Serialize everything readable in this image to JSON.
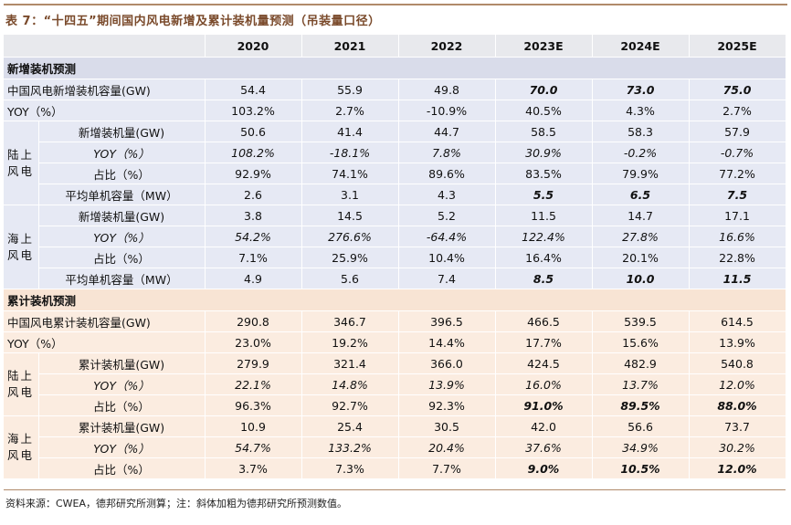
{
  "title": "表 7：“十四五”期间国内风电新增及累计装机量预测（吊装量口径）",
  "columns": [
    "2020",
    "2021",
    "2022",
    "2023E",
    "2024E",
    "2025E"
  ],
  "sections": [
    {
      "heading": "新增装机预测",
      "theme": "blue",
      "rows": [
        {
          "label": "中国风电新增装机容量(GW)",
          "values": [
            "54.4",
            "55.9",
            "49.8",
            "70.0",
            "73.0",
            "75.0"
          ],
          "style": [
            "",
            "",
            "",
            "bi",
            "bi",
            "bi"
          ]
        },
        {
          "label": "YOY（%）",
          "values": [
            "103.2%",
            "2.7%",
            "-10.9%",
            "40.5%",
            "4.3%",
            "2.7%"
          ],
          "style": [
            "",
            "",
            "",
            "",
            "",
            ""
          ]
        }
      ],
      "groups": [
        {
          "name": "陆上风电",
          "rows": [
            {
              "label": "新增装机量(GW)",
              "italic_label": false,
              "values": [
                "50.6",
                "41.4",
                "44.7",
                "58.5",
                "58.3",
                "57.9"
              ],
              "style": [
                "",
                "",
                "",
                "",
                "",
                ""
              ]
            },
            {
              "label": "YOY（%）",
              "italic_label": true,
              "values": [
                "108.2%",
                "-18.1%",
                "7.8%",
                "30.9%",
                "-0.2%",
                "-0.7%"
              ],
              "style": [
                "it",
                "it",
                "it",
                "it",
                "it",
                "it"
              ]
            },
            {
              "label": "占比（%）",
              "italic_label": false,
              "values": [
                "92.9%",
                "74.1%",
                "89.6%",
                "83.5%",
                "79.9%",
                "77.2%"
              ],
              "style": [
                "",
                "",
                "",
                "",
                "",
                ""
              ]
            },
            {
              "label": "平均单机容量（MW）",
              "italic_label": false,
              "values": [
                "2.6",
                "3.1",
                "4.3",
                "5.5",
                "6.5",
                "7.5"
              ],
              "style": [
                "",
                "",
                "",
                "bi",
                "bi",
                "bi"
              ]
            }
          ]
        },
        {
          "name": "海上风电",
          "rows": [
            {
              "label": "新增装机量(GW)",
              "italic_label": false,
              "values": [
                "3.8",
                "14.5",
                "5.2",
                "11.5",
                "14.7",
                "17.1"
              ],
              "style": [
                "",
                "",
                "",
                "",
                "",
                ""
              ]
            },
            {
              "label": "YOY（%）",
              "italic_label": true,
              "values": [
                "54.2%",
                "276.6%",
                "-64.4%",
                "122.4%",
                "27.8%",
                "16.6%"
              ],
              "style": [
                "it",
                "it",
                "it",
                "it",
                "it",
                "it"
              ]
            },
            {
              "label": "占比（%）",
              "italic_label": false,
              "values": [
                "7.1%",
                "25.9%",
                "10.4%",
                "16.4%",
                "20.1%",
                "22.8%"
              ],
              "style": [
                "",
                "",
                "",
                "",
                "",
                ""
              ]
            },
            {
              "label": "平均单机容量（MW）",
              "italic_label": false,
              "values": [
                "4.9",
                "5.6",
                "7.4",
                "8.5",
                "10.0",
                "11.5"
              ],
              "style": [
                "",
                "",
                "",
                "bi",
                "bi",
                "bi"
              ]
            }
          ]
        }
      ]
    },
    {
      "heading": "累计装机预测",
      "theme": "peach",
      "rows": [
        {
          "label": "中国风电累计装机容量(GW)",
          "values": [
            "290.8",
            "346.7",
            "396.5",
            "466.5",
            "539.5",
            "614.5"
          ],
          "style": [
            "",
            "",
            "",
            "",
            "",
            ""
          ]
        },
        {
          "label": "YOY（%）",
          "values": [
            "23.0%",
            "19.2%",
            "14.4%",
            "17.7%",
            "15.6%",
            "13.9%"
          ],
          "style": [
            "",
            "",
            "",
            "",
            "",
            ""
          ]
        }
      ],
      "groups": [
        {
          "name": "陆上风电",
          "rows": [
            {
              "label": "累计装机量(GW)",
              "italic_label": false,
              "values": [
                "279.9",
                "321.4",
                "366.0",
                "424.5",
                "482.9",
                "540.8"
              ],
              "style": [
                "",
                "",
                "",
                "",
                "",
                ""
              ]
            },
            {
              "label": "YOY（%）",
              "italic_label": true,
              "values": [
                "22.1%",
                "14.8%",
                "13.9%",
                "16.0%",
                "13.7%",
                "12.0%"
              ],
              "style": [
                "it",
                "it",
                "it",
                "it",
                "it",
                "it"
              ]
            },
            {
              "label": "占比（%）",
              "italic_label": false,
              "values": [
                "96.3%",
                "92.7%",
                "92.3%",
                "91.0%",
                "89.5%",
                "88.0%"
              ],
              "style": [
                "",
                "",
                "",
                "bi",
                "bi",
                "bi"
              ]
            }
          ]
        },
        {
          "name": "海上风电",
          "rows": [
            {
              "label": "累计装机量(GW)",
              "italic_label": false,
              "values": [
                "10.9",
                "25.4",
                "30.5",
                "42.0",
                "56.6",
                "73.7"
              ],
              "style": [
                "",
                "",
                "",
                "",
                "",
                ""
              ]
            },
            {
              "label": "YOY（%）",
              "italic_label": true,
              "values": [
                "54.7%",
                "133.2%",
                "20.4%",
                "37.6%",
                "34.9%",
                "30.2%"
              ],
              "style": [
                "it",
                "it",
                "it",
                "it",
                "it",
                "it"
              ]
            },
            {
              "label": "占比（%）",
              "italic_label": false,
              "values": [
                "3.7%",
                "7.3%",
                "7.7%",
                "9.0%",
                "10.5%",
                "12.0%"
              ],
              "style": [
                "",
                "",
                "",
                "bi",
                "bi",
                "bi"
              ]
            }
          ]
        }
      ]
    }
  ],
  "source": "资料来源：CWEA，德邦研究所测算；注：斜体加粗为德邦研究所预测数值。",
  "colors": {
    "title": "#7a4a2b",
    "rule": "#b08a6a",
    "header_bg": "#e8e9ed",
    "blue_section": "#d9dcea",
    "blue_row": "#e6e9f4",
    "peach_section": "#f8e4d4",
    "peach_row": "#fbece0"
  }
}
